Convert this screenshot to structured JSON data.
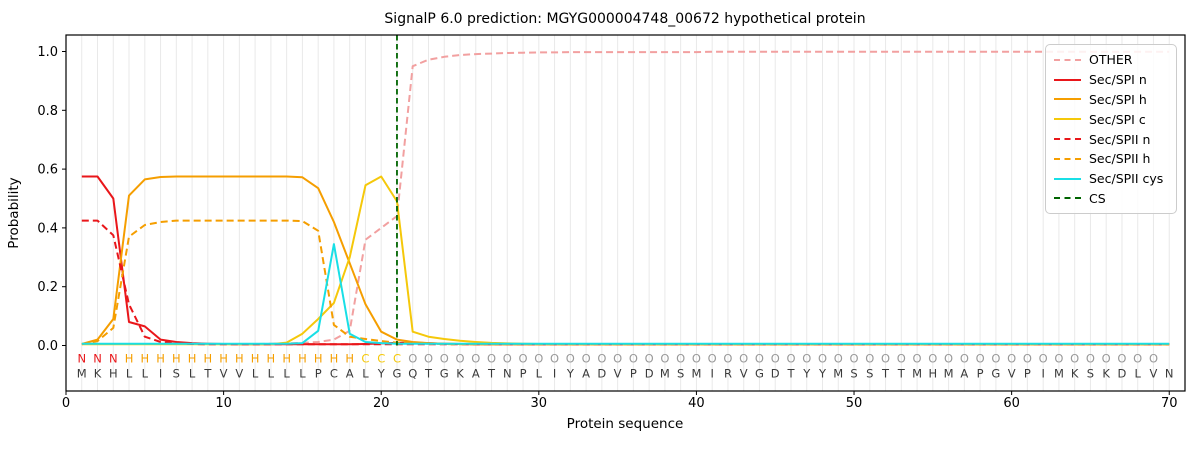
{
  "chart_data": {
    "type": "line",
    "title": "SignalP 6.0 prediction: MGYG000004748_00672 hypothetical protein",
    "xlabel": "Protein sequence",
    "ylabel": "Probability",
    "xlim": [
      0,
      71
    ],
    "xticks": [
      0,
      10,
      20,
      30,
      40,
      50,
      60,
      70
    ],
    "ytick_values": [
      0,
      0.2,
      0.4,
      0.6,
      0.8,
      1.0
    ],
    "ytick_labels": [
      "0.0",
      "0.2",
      "0.4",
      "0.6",
      "0.8",
      "1.0"
    ],
    "grid": "vertical gridline at every residue position",
    "grid_color": "#e9e9e9",
    "legend_position": "upper-right",
    "cs_position": 21,
    "sequence": "MKHLLISLTVVLLLLPCALYGQTGKATNPLIYADVPDMSMIRVGDTYYMSSTTMHMAPGVPIMKSKDLVN",
    "annotation": "NNNHHHHHHHHHHHHHHHCCCOOOOOOOOOOOOOOOOOOOOOOOOOOOOOOOOOOOOOOOOOOOOOOOO",
    "annotation_colors": {
      "N": "#e9161a",
      "H": "#f59e00",
      "C": "#f5c80a",
      "O": "#999999"
    },
    "sequence_color": "#3a3a3a",
    "series": [
      {
        "name": "OTHER",
        "color": "#f2a0a0",
        "dash": true,
        "values": [
          0.005,
          0.005,
          0.005,
          0.005,
          0.005,
          0.005,
          0.005,
          0.005,
          0.005,
          0.005,
          0.005,
          0.005,
          0.006,
          0.007,
          0.009,
          0.012,
          0.02,
          0.05,
          0.36,
          0.4,
          0.44,
          0.95,
          0.972,
          0.982,
          0.988,
          0.991,
          0.993,
          0.995,
          0.996,
          0.997,
          0.997,
          0.998,
          0.998,
          0.998,
          0.998,
          0.998,
          0.998,
          0.998,
          0.998,
          0.998,
          0.999,
          0.999,
          0.999,
          0.999,
          0.999,
          0.999,
          0.999,
          0.999,
          0.999,
          0.999,
          0.999,
          0.999,
          0.999,
          0.999,
          0.999,
          0.999,
          0.999,
          0.999,
          0.999,
          0.999,
          0.999,
          0.999,
          0.999,
          0.999,
          0.999,
          0.999,
          0.999,
          0.999,
          0.999,
          0.999
        ]
      },
      {
        "name": "Sec/SPI n",
        "color": "#e9161a",
        "dash": false,
        "values": [
          0.575,
          0.575,
          0.5,
          0.08,
          0.065,
          0.02,
          0.012,
          0.008,
          0.006,
          0.005,
          0.004,
          0.004,
          0.004,
          0.004,
          0.004,
          0.004,
          0.004,
          0.004,
          0.005,
          0.007,
          0.009,
          0.01,
          0.008,
          0.006,
          0.005,
          0.004,
          0.004,
          0.004,
          0.004,
          0.004,
          0.004,
          0.004,
          0.004,
          0.004,
          0.004,
          0.004,
          0.004,
          0.004,
          0.004,
          0.004,
          0.004,
          0.004,
          0.004,
          0.004,
          0.004,
          0.004,
          0.004,
          0.004,
          0.004,
          0.004,
          0.004,
          0.004,
          0.004,
          0.004,
          0.004,
          0.004,
          0.004,
          0.004,
          0.004,
          0.004,
          0.004,
          0.004,
          0.004,
          0.004,
          0.004,
          0.004,
          0.004,
          0.004,
          0.004,
          0.004
        ]
      },
      {
        "name": "Sec/SPI h",
        "color": "#f59e00",
        "dash": false,
        "values": [
          0.005,
          0.02,
          0.09,
          0.51,
          0.565,
          0.573,
          0.575,
          0.575,
          0.575,
          0.575,
          0.575,
          0.575,
          0.575,
          0.575,
          0.572,
          0.535,
          0.42,
          0.28,
          0.14,
          0.047,
          0.02,
          0.012,
          0.008,
          0.006,
          0.005,
          0.004,
          0.004,
          0.004,
          0.004,
          0.004,
          0.004,
          0.004,
          0.004,
          0.004,
          0.004,
          0.004,
          0.004,
          0.004,
          0.004,
          0.004,
          0.004,
          0.004,
          0.004,
          0.004,
          0.004,
          0.004,
          0.004,
          0.004,
          0.004,
          0.004,
          0.004,
          0.004,
          0.004,
          0.004,
          0.004,
          0.004,
          0.004,
          0.004,
          0.004,
          0.004,
          0.004,
          0.004,
          0.004,
          0.004,
          0.004,
          0.004,
          0.004,
          0.004,
          0.004,
          0.004
        ]
      },
      {
        "name": "Sec/SPI c",
        "color": "#f5c80a",
        "dash": false,
        "values": [
          0.004,
          0.004,
          0.004,
          0.004,
          0.004,
          0.004,
          0.004,
          0.004,
          0.004,
          0.004,
          0.004,
          0.004,
          0.004,
          0.01,
          0.04,
          0.09,
          0.145,
          0.3,
          0.545,
          0.575,
          0.49,
          0.047,
          0.03,
          0.022,
          0.016,
          0.012,
          0.009,
          0.007,
          0.006,
          0.005,
          0.005,
          0.004,
          0.004,
          0.004,
          0.004,
          0.004,
          0.004,
          0.004,
          0.004,
          0.004,
          0.004,
          0.004,
          0.004,
          0.004,
          0.004,
          0.004,
          0.004,
          0.004,
          0.004,
          0.004,
          0.004,
          0.004,
          0.004,
          0.004,
          0.004,
          0.004,
          0.004,
          0.004,
          0.004,
          0.004,
          0.004,
          0.004,
          0.004,
          0.004,
          0.004,
          0.004,
          0.004,
          0.004,
          0.004,
          0.004
        ]
      },
      {
        "name": "Sec/SPII n",
        "color": "#e9161a",
        "dash": true,
        "values": [
          0.425,
          0.425,
          0.375,
          0.14,
          0.03,
          0.012,
          0.008,
          0.005,
          0.004,
          0.004,
          0.004,
          0.004,
          0.004,
          0.004,
          0.004,
          0.004,
          0.004,
          0.004,
          0.004,
          0.004,
          0.004,
          0.004,
          0.004,
          0.004,
          0.004,
          0.004,
          0.004,
          0.004,
          0.004,
          0.004,
          0.004,
          0.004,
          0.004,
          0.004,
          0.004,
          0.004,
          0.004,
          0.004,
          0.004,
          0.004,
          0.004,
          0.004,
          0.004,
          0.004,
          0.004,
          0.004,
          0.004,
          0.004,
          0.004,
          0.004,
          0.004,
          0.004,
          0.004,
          0.004,
          0.004,
          0.004,
          0.004,
          0.004,
          0.004,
          0.004,
          0.004,
          0.004,
          0.004,
          0.004,
          0.004,
          0.004,
          0.004,
          0.004,
          0.004,
          0.004
        ]
      },
      {
        "name": "Sec/SPII h",
        "color": "#f59e00",
        "dash": true,
        "values": [
          0.004,
          0.015,
          0.06,
          0.37,
          0.41,
          0.42,
          0.425,
          0.425,
          0.425,
          0.425,
          0.425,
          0.425,
          0.425,
          0.425,
          0.423,
          0.39,
          0.07,
          0.03,
          0.022,
          0.015,
          0.01,
          0.008,
          0.006,
          0.005,
          0.004,
          0.004,
          0.004,
          0.004,
          0.004,
          0.004,
          0.004,
          0.004,
          0.004,
          0.004,
          0.004,
          0.004,
          0.004,
          0.004,
          0.004,
          0.004,
          0.004,
          0.004,
          0.004,
          0.004,
          0.004,
          0.004,
          0.004,
          0.004,
          0.004,
          0.004,
          0.004,
          0.004,
          0.004,
          0.004,
          0.004,
          0.004,
          0.004,
          0.004,
          0.004,
          0.004,
          0.004,
          0.004,
          0.004,
          0.004,
          0.004,
          0.004,
          0.004,
          0.004,
          0.004,
          0.004
        ]
      },
      {
        "name": "Sec/SPII cys",
        "color": "#18dfe6",
        "dash": false,
        "values": [
          0.006,
          0.006,
          0.006,
          0.006,
          0.006,
          0.006,
          0.006,
          0.006,
          0.006,
          0.006,
          0.006,
          0.006,
          0.006,
          0.006,
          0.008,
          0.05,
          0.345,
          0.04,
          0.012,
          0.008,
          0.006,
          0.006,
          0.006,
          0.006,
          0.006,
          0.006,
          0.006,
          0.006,
          0.006,
          0.006,
          0.006,
          0.006,
          0.006,
          0.006,
          0.006,
          0.006,
          0.006,
          0.006,
          0.006,
          0.006,
          0.006,
          0.006,
          0.006,
          0.006,
          0.006,
          0.006,
          0.006,
          0.006,
          0.006,
          0.006,
          0.006,
          0.006,
          0.006,
          0.006,
          0.006,
          0.006,
          0.006,
          0.006,
          0.006,
          0.006,
          0.006,
          0.006,
          0.006,
          0.006,
          0.006,
          0.006,
          0.006,
          0.006,
          0.006,
          0.006
        ]
      },
      {
        "name": "CS",
        "color": "#006400",
        "dash": true,
        "type": "vline",
        "x": 21
      }
    ]
  }
}
